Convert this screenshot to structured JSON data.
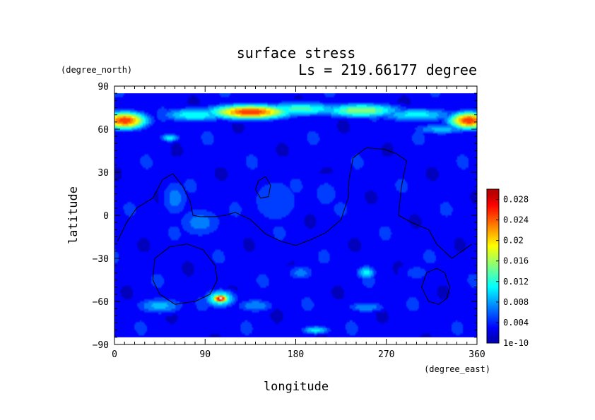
{
  "chart_data": {
    "type": "heatmap",
    "title": "surface stress",
    "subtitle": "Ls = 219.66177 degree",
    "xlabel": "longitude",
    "ylabel": "latitude",
    "x_units": "(degree_east)",
    "y_units": "(degree_north)",
    "xlim": [
      0,
      360
    ],
    "ylim": [
      -90,
      90
    ],
    "x_ticks": [
      "0",
      "90",
      "180",
      "270",
      "360"
    ],
    "y_ticks": [
      "90",
      "60",
      "30",
      "0",
      "−30",
      "−60",
      "−90"
    ],
    "colorbar": {
      "min": 0,
      "max": 0.03,
      "tick_labels": [
        "1e-10",
        "0.004",
        "0.008",
        "0.012",
        "0.016",
        "0.02",
        "0.024",
        "0.028"
      ],
      "tick_values": [
        0,
        0.004,
        0.008,
        0.012,
        0.016,
        0.02,
        0.024,
        0.028
      ]
    },
    "data_extent_lat": [
      -85,
      85
    ],
    "background_level": 0.003,
    "features": [
      {
        "lon": 135,
        "lat": 72,
        "rlon": 40,
        "rlat": 5,
        "v": 0.026
      },
      {
        "lon": 185,
        "lat": 74,
        "rlon": 45,
        "rlat": 5,
        "v": 0.013
      },
      {
        "lon": 245,
        "lat": 73,
        "rlon": 40,
        "rlat": 5,
        "v": 0.016
      },
      {
        "lon": 80,
        "lat": 70,
        "rlon": 35,
        "rlat": 5,
        "v": 0.012
      },
      {
        "lon": 10,
        "lat": 66,
        "rlon": 22,
        "rlat": 6,
        "v": 0.026
      },
      {
        "lon": 352,
        "lat": 66,
        "rlon": 20,
        "rlat": 6,
        "v": 0.026
      },
      {
        "lon": 300,
        "lat": 70,
        "rlon": 40,
        "rlat": 5,
        "v": 0.011
      },
      {
        "lon": 55,
        "lat": 54,
        "rlon": 10,
        "rlat": 3,
        "v": 0.011
      },
      {
        "lon": 325,
        "lat": 60,
        "rlon": 30,
        "rlat": 4,
        "v": 0.009
      },
      {
        "lon": 60,
        "lat": 12,
        "rlon": 15,
        "rlat": 15,
        "v": 0.007
      },
      {
        "lon": 85,
        "lat": -5,
        "rlon": 25,
        "rlat": 12,
        "v": 0.007
      },
      {
        "lon": 160,
        "lat": 10,
        "rlon": 30,
        "rlat": 20,
        "v": 0.006
      },
      {
        "lon": 210,
        "lat": 15,
        "rlon": 20,
        "rlat": 15,
        "v": 0.005
      },
      {
        "lon": 105,
        "lat": -58,
        "rlon": 8,
        "rlat": 3,
        "v": 0.03
      },
      {
        "lon": 105,
        "lat": -58,
        "rlon": 15,
        "rlat": 6,
        "v": 0.015
      },
      {
        "lon": 45,
        "lat": -63,
        "rlon": 25,
        "rlat": 6,
        "v": 0.009
      },
      {
        "lon": 140,
        "lat": -63,
        "rlon": 20,
        "rlat": 5,
        "v": 0.008
      },
      {
        "lon": 200,
        "lat": -80,
        "rlon": 15,
        "rlat": 3,
        "v": 0.011
      },
      {
        "lon": 250,
        "lat": -40,
        "rlon": 10,
        "rlat": 5,
        "v": 0.011
      },
      {
        "lon": 250,
        "lat": -64,
        "rlon": 20,
        "rlat": 4,
        "v": 0.008
      },
      {
        "lon": 185,
        "lat": -40,
        "rlon": 15,
        "rlat": 6,
        "v": 0.007
      },
      {
        "lon": 300,
        "lat": -40,
        "rlon": 20,
        "rlat": 8,
        "v": 0.005
      }
    ],
    "contours": [
      [
        [
          3,
          -18
        ],
        [
          12,
          -5
        ],
        [
          22,
          5
        ],
        [
          38,
          12
        ],
        [
          48,
          25
        ],
        [
          58,
          29
        ],
        [
          68,
          20
        ],
        [
          75,
          10
        ],
        [
          78,
          0
        ],
        [
          85,
          -1
        ],
        [
          100,
          -1
        ],
        [
          110,
          0
        ],
        [
          120,
          2
        ],
        [
          135,
          -3
        ],
        [
          150,
          -13
        ],
        [
          165,
          -18
        ],
        [
          180,
          -21
        ],
        [
          195,
          -17
        ],
        [
          210,
          -12
        ],
        [
          225,
          -3
        ],
        [
          232,
          12
        ],
        [
          233,
          25
        ],
        [
          237,
          40
        ],
        [
          250,
          47
        ],
        [
          268,
          46
        ],
        [
          280,
          43
        ],
        [
          290,
          38
        ],
        [
          285,
          20
        ],
        [
          282,
          0
        ],
        [
          295,
          -5
        ],
        [
          312,
          -10
        ],
        [
          320,
          -20
        ],
        [
          335,
          -30
        ],
        [
          355,
          -20
        ]
      ],
      [
        [
          40,
          -30
        ],
        [
          55,
          -22
        ],
        [
          72,
          -20
        ],
        [
          88,
          -24
        ],
        [
          100,
          -35
        ],
        [
          102,
          -45
        ],
        [
          95,
          -55
        ],
        [
          80,
          -60
        ],
        [
          60,
          -62
        ],
        [
          45,
          -55
        ],
        [
          38,
          -45
        ],
        [
          40,
          -30
        ]
      ],
      [
        [
          143,
          24
        ],
        [
          150,
          27
        ],
        [
          155,
          21
        ],
        [
          153,
          13
        ],
        [
          145,
          12
        ],
        [
          140,
          18
        ],
        [
          143,
          24
        ]
      ],
      [
        [
          320,
          -37
        ],
        [
          328,
          -40
        ],
        [
          333,
          -50
        ],
        [
          330,
          -58
        ],
        [
          322,
          -62
        ],
        [
          312,
          -60
        ],
        [
          305,
          -50
        ],
        [
          310,
          -40
        ],
        [
          320,
          -37
        ]
      ]
    ]
  }
}
